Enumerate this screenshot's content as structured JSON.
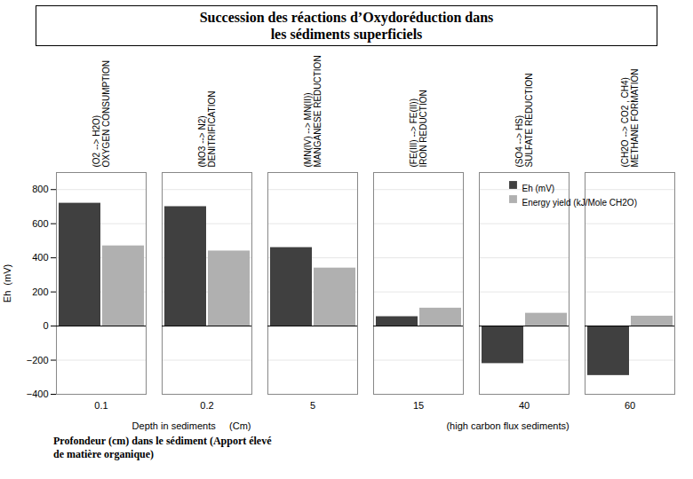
{
  "chart_data": {
    "type": "bar",
    "title": "Succession des réactions d’Oxydoréduction dans\nles sédiments superficiels",
    "categories": [
      "0.1",
      "0.2",
      "5",
      "15",
      "40",
      "60"
    ],
    "series": [
      {
        "name": "Eh (mV)",
        "color": "#404040",
        "values": [
          720,
          700,
          460,
          55,
          -220,
          -290
        ]
      },
      {
        "name": "Energy yield (kJ/Mole CH2O)",
        "color": "#b0b0b0",
        "values": [
          470,
          440,
          340,
          105,
          75,
          58
        ]
      }
    ],
    "ylabel": "Eh  (mV)",
    "xlabel": "Depth in sediments     (Cm)",
    "xlabel_note": "(high carbon flux sediments)",
    "bar_annotations": [
      "(O2 --> H2O)\nOXYGEN CONSUMPTION",
      "(NO3 --> N2)\nDENITRIFICATION",
      "(MN(IV) --> MN(II))\nMANGANESE REDUCTION",
      "(FE(III) --> FE(II))\nIRON REDUCTION",
      "(SO4 --> HS)\nSULFATE REDUCTION",
      "(CH2O --> CO2 , CH4)\nMETHANE FORMATION"
    ],
    "caption": "Profondeur (cm) dans le sédiment (Apport élevé\nde matière organique)",
    "ylim": [
      -400,
      900
    ],
    "yticks": [
      -400,
      -200,
      0,
      200,
      400,
      600,
      800
    ],
    "grid": true,
    "legend": "top-right"
  }
}
